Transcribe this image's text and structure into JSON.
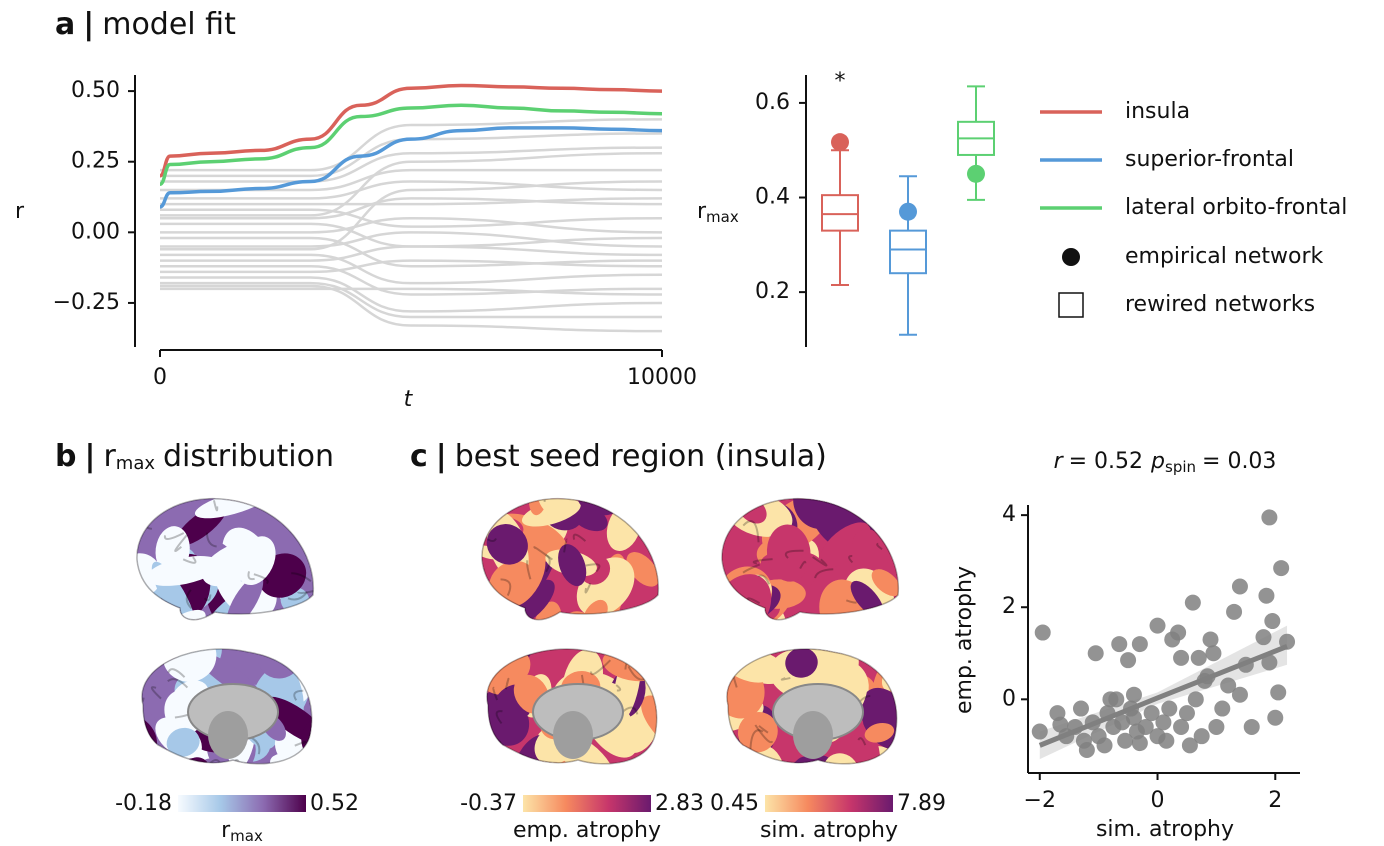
{
  "panels": [
    {
      "letter": "a",
      "separator": "|",
      "title": "model fit"
    },
    {
      "letter": "b",
      "separator": "|",
      "title_parts": [
        "r",
        "max",
        "distribution"
      ]
    },
    {
      "letter": "c",
      "separator": "|",
      "title": "best seed region (insula)"
    }
  ],
  "chart_data": [
    {
      "type": "line",
      "xlabel": "t",
      "ylabel": "r",
      "x": [
        0,
        200,
        1000,
        2000,
        3000,
        4000,
        5000,
        6000,
        7000,
        8000,
        9000,
        10000
      ],
      "xlim": [
        0,
        10000
      ],
      "xticks": [
        0,
        10000
      ],
      "ylim": [
        -0.406,
        0.557
      ],
      "yticks": [
        {
          "value": 0.5,
          "label": "0.50"
        },
        {
          "value": 0.25,
          "label": "0.25"
        },
        {
          "value": 0,
          "label": "0.00"
        },
        {
          "value": -0.25,
          "label": "−0.25"
        }
      ],
      "series": [
        {
          "name": "insula",
          "color": "#d9625a",
          "values": [
            0.2,
            0.27,
            0.28,
            0.29,
            0.33,
            0.45,
            0.51,
            0.52,
            0.515,
            0.51,
            0.505,
            0.5
          ]
        },
        {
          "name": "superior-frontal",
          "color": "#5599d8",
          "values": [
            0.09,
            0.14,
            0.145,
            0.155,
            0.18,
            0.27,
            0.33,
            0.36,
            0.37,
            0.37,
            0.365,
            0.36
          ]
        },
        {
          "name": "lateral orbito-frontal",
          "color": "#5cd072",
          "values": [
            0.17,
            0.24,
            0.25,
            0.26,
            0.3,
            0.41,
            0.44,
            0.45,
            0.44,
            0.43,
            0.425,
            0.42
          ]
        }
      ],
      "background": {
        "color": "#d6d6d6",
        "x": [
          0,
          3000,
          5000,
          10000
        ],
        "lines": [
          [
            0.22,
            0.22,
            0.38,
            0.4
          ],
          [
            0.2,
            0.2,
            0.33,
            0.35
          ],
          [
            0.18,
            0.18,
            0.28,
            0.3
          ],
          [
            0.15,
            0.15,
            0.22,
            0.22
          ],
          [
            0.12,
            0.12,
            0.18,
            0.15
          ],
          [
            0.1,
            0.1,
            0.1,
            0.12
          ],
          [
            0.08,
            0.08,
            0.02,
            0.05
          ],
          [
            0.05,
            0.05,
            0.12,
            0.1
          ],
          [
            0.03,
            0.03,
            -0.05,
            -0.02
          ],
          [
            0,
            0,
            0.05,
            0
          ],
          [
            -0.02,
            -0.02,
            -0.12,
            -0.1
          ],
          [
            -0.05,
            -0.05,
            0,
            -0.05
          ],
          [
            -0.08,
            -0.08,
            -0.18,
            -0.15
          ],
          [
            -0.1,
            -0.1,
            -0.05,
            -0.08
          ],
          [
            -0.12,
            -0.12,
            -0.22,
            -0.2
          ],
          [
            -0.14,
            -0.14,
            -0.1,
            -0.12
          ],
          [
            -0.16,
            -0.16,
            -0.28,
            -0.25
          ],
          [
            -0.18,
            -0.18,
            -0.3,
            -0.3
          ],
          [
            -0.19,
            -0.19,
            -0.33,
            -0.35
          ],
          [
            -0.2,
            -0.2,
            -0.2,
            -0.22
          ],
          [
            0.06,
            0.06,
            0.25,
            0.28
          ],
          [
            -0.06,
            -0.06,
            0.15,
            0.18
          ]
        ]
      }
    },
    {
      "type": "box",
      "ylabel_parts": [
        "r",
        "max"
      ],
      "ylim": [
        0.084,
        0.659
      ],
      "yticks": [
        {
          "value": 0.6,
          "label": "0.6"
        },
        {
          "value": 0.4,
          "label": "0.4"
        },
        {
          "value": 0.2,
          "label": "0.2"
        }
      ],
      "boxes": [
        {
          "color": "#d9625a",
          "whisker_low": 0.215,
          "q1": 0.33,
          "median": 0.365,
          "q3": 0.405,
          "whisker_high": 0.5,
          "empirical": 0.517
        },
        {
          "color": "#5599d8",
          "whisker_low": 0.11,
          "q1": 0.24,
          "median": 0.29,
          "q3": 0.33,
          "whisker_high": 0.445,
          "empirical": 0.37
        },
        {
          "color": "#5cd072",
          "whisker_low": 0.395,
          "q1": 0.49,
          "median": 0.525,
          "q3": 0.56,
          "whisker_high": 0.635,
          "empirical": 0.45
        }
      ],
      "significance": [
        "*",
        null,
        null
      ],
      "empirical_label": "empirical network",
      "rewired_label": "rewired networks"
    },
    {
      "type": "scatter",
      "title_parts": [
        "r",
        "= 0.52",
        "p",
        "spin",
        "= 0.03"
      ],
      "xlabel": "sim. atrophy",
      "ylabel": "emp. atrophy",
      "color": "#808080",
      "xlim": [
        -2.2,
        2.42
      ],
      "xticks": [
        {
          "value": -2,
          "label": "−2"
        },
        0,
        2
      ],
      "ylim": [
        -1.6,
        4.22
      ],
      "yticks": [
        0,
        2,
        4
      ],
      "x": [
        -1.95,
        -2.0,
        -1.7,
        -1.65,
        -1.55,
        -1.4,
        -1.3,
        -1.25,
        -1.2,
        -1.1,
        -1.05,
        -1.0,
        -0.9,
        -0.85,
        -0.8,
        -0.75,
        -0.7,
        -0.65,
        -0.6,
        -0.55,
        -0.5,
        -0.45,
        -0.4,
        -0.4,
        -0.35,
        -0.3,
        -0.3,
        -0.2,
        -0.1,
        0.0,
        0.0,
        0.1,
        0.15,
        0.2,
        0.25,
        0.35,
        0.4,
        0.4,
        0.5,
        0.55,
        0.6,
        0.65,
        0.7,
        0.75,
        0.8,
        0.85,
        0.9,
        0.95,
        1.0,
        1.1,
        1.2,
        1.3,
        1.4,
        1.4,
        1.5,
        1.6,
        1.8,
        1.85,
        1.9,
        1.9,
        1.95,
        2.0,
        2.05,
        2.1,
        2.2
      ],
      "y": [
        1.45,
        -0.7,
        -0.3,
        -0.55,
        -0.8,
        -0.6,
        -0.2,
        -0.9,
        -1.1,
        -0.5,
        1.0,
        -0.8,
        -1.0,
        -0.3,
        0.0,
        -0.6,
        0.0,
        1.2,
        -0.5,
        -0.9,
        0.85,
        -0.2,
        -0.4,
        0.1,
        -0.7,
        -0.95,
        1.2,
        -0.6,
        -0.3,
        -0.8,
        1.6,
        -0.5,
        -0.9,
        -0.2,
        1.3,
        1.45,
        -0.6,
        0.9,
        -0.3,
        -1.0,
        2.1,
        0.0,
        0.9,
        -0.8,
        0.4,
        0.5,
        1.3,
        1.0,
        -0.6,
        -0.2,
        0.3,
        1.9,
        2.45,
        0.1,
        0.75,
        -0.6,
        1.35,
        2.25,
        3.95,
        0.8,
        1.7,
        -0.4,
        0.15,
        2.85,
        1.25
      ],
      "fit": {
        "x": [
          -2.0,
          0,
          2.2
        ],
        "y": [
          -1.0,
          0.03,
          1.15
        ],
        "lower": [
          -1.3,
          -0.1,
          0.75
        ],
        "upper": [
          -0.7,
          0.15,
          1.6
        ]
      }
    },
    {
      "type": "brain-map",
      "colorbar": {
        "lim": [
          -0.18,
          0.52
        ],
        "label_parts": [
          "r",
          "max"
        ],
        "colors": [
          "#f7fbff",
          "#a6c8e8",
          "#8c6bb1",
          "#4d004b"
        ]
      }
    },
    {
      "type": "brain-map",
      "colorbar": {
        "lim": [
          -0.37,
          2.83
        ],
        "label": "emp. atrophy",
        "colors": [
          "#fce4a8",
          "#f68a5f",
          "#c7366b",
          "#6a1a6e"
        ]
      }
    },
    {
      "type": "brain-map",
      "colorbar": {
        "lim": [
          0.45,
          7.89
        ],
        "label": "sim. atrophy",
        "colors": [
          "#fce4a8",
          "#f68a5f",
          "#c7366b",
          "#6a1a6e"
        ]
      }
    }
  ]
}
